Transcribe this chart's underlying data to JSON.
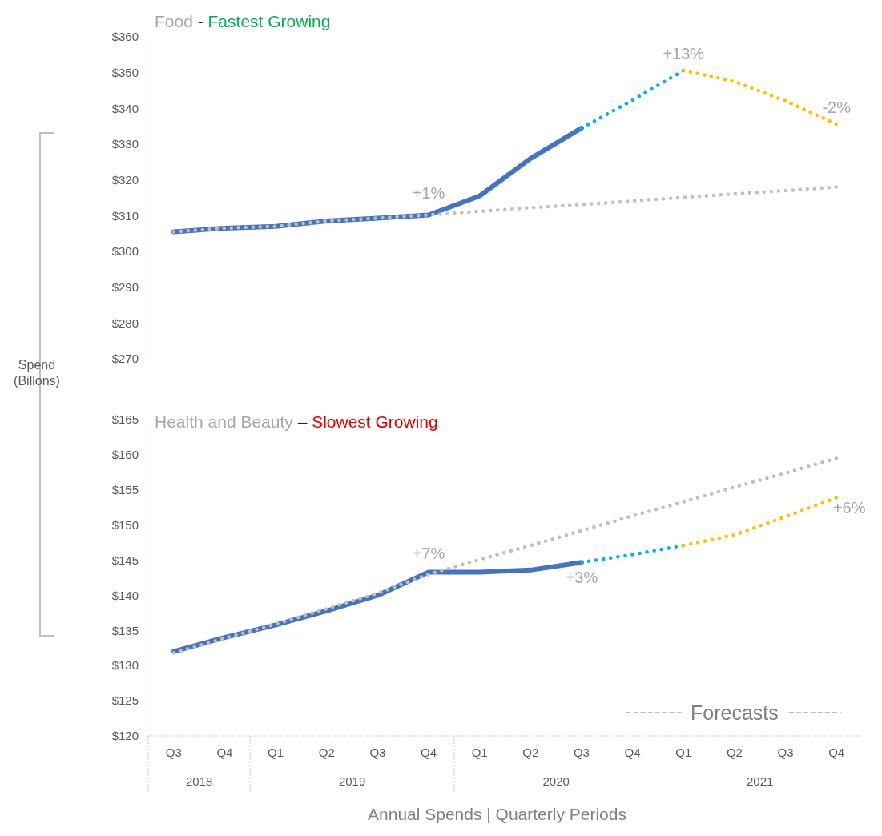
{
  "chart_data": [
    {
      "type": "line",
      "title": "Food - Fastest Growing",
      "ylabel": "Spend (Billons)",
      "categories": [
        null,
        null,
        null,
        null,
        null,
        null,
        null,
        null,
        null,
        null,
        null,
        null,
        null,
        null
      ],
      "series": [
        {
          "color": "#4472c4",
          "line_style": "solid",
          "values": [
            305.5,
            306.5,
            307,
            308.5,
            309.3,
            310.2,
            315.5,
            326,
            334.5,
            null,
            null,
            null,
            null,
            null
          ]
        },
        {
          "color": "#00b0f0",
          "line_style": "dotted",
          "values": [
            null,
            null,
            null,
            null,
            null,
            null,
            null,
            null,
            334.5,
            342.3,
            350.6,
            null,
            null,
            null
          ]
        },
        {
          "color": "#ffc000",
          "line_style": "dotted",
          "values": [
            null,
            null,
            null,
            null,
            null,
            null,
            null,
            null,
            null,
            null,
            350.6,
            347.5,
            342.1,
            335.6
          ]
        },
        {
          "color": "#bfbfbf",
          "line_style": "dotted",
          "values": [
            305.5,
            306.5,
            307,
            308.5,
            309.3,
            310.2,
            311.2,
            312.2,
            313.1,
            314.1,
            315.1,
            316.1,
            317,
            318
          ]
        }
      ],
      "ylim": [
        270,
        360
      ],
      "yticks": [
        {
          "value": 270,
          "label": "$270"
        },
        {
          "value": 280,
          "label": "$280"
        },
        {
          "value": 290,
          "label": "$290"
        },
        {
          "value": 300,
          "label": "$300"
        },
        {
          "value": 310,
          "label": "$310"
        },
        {
          "value": 320,
          "label": "$320"
        },
        {
          "value": 330,
          "label": "$330"
        },
        {
          "value": 340,
          "label": "$340"
        },
        {
          "value": 350,
          "label": "$350"
        },
        {
          "value": 360,
          "label": "$360"
        }
      ],
      "tick_labels": "y",
      "grid": false,
      "marker": "none",
      "annotations": [
        "+1%",
        "+13%",
        "-2%"
      ]
    },
    {
      "type": "line",
      "title": "Health and Beauty – Slowest Growing",
      "xlabel": "Annual Spends | Quarterly Periods",
      "categories": [
        "Q3",
        "Q4",
        "Q1",
        "Q2",
        "Q3",
        "Q4",
        "Q1",
        "Q2",
        "Q3",
        "Q4",
        "Q1",
        "Q2",
        "Q3",
        "Q4"
      ],
      "series": [
        {
          "color": "#4472c4",
          "line_style": "solid",
          "values": [
            132,
            134,
            135.8,
            137.8,
            140,
            143.3,
            143.3,
            143.6,
            144.7,
            null,
            null,
            null,
            null,
            null
          ]
        },
        {
          "color": "#00b0f0",
          "line_style": "dotted",
          "values": [
            null,
            null,
            null,
            null,
            null,
            null,
            null,
            null,
            144.7,
            145.8,
            147.1,
            null,
            null,
            null
          ]
        },
        {
          "color": "#ffc000",
          "line_style": "dotted",
          "values": [
            null,
            null,
            null,
            null,
            null,
            null,
            null,
            null,
            null,
            null,
            147.1,
            148.6,
            151.2,
            153.9
          ]
        },
        {
          "color": "#bfbfbf",
          "line_style": "dotted",
          "values": [
            131.8,
            133.9,
            135.9,
            138.1,
            140.3,
            143,
            145.1,
            147.1,
            149.2,
            151.3,
            153.3,
            155.4,
            157.4,
            159.5
          ]
        }
      ],
      "ylim": [
        120,
        165
      ],
      "yticks": [
        {
          "value": 120,
          "label": "$120"
        },
        {
          "value": 125,
          "label": "$125"
        },
        {
          "value": 130,
          "label": "$130"
        },
        {
          "value": 135,
          "label": "$135"
        },
        {
          "value": 140,
          "label": "$140"
        },
        {
          "value": 145,
          "label": "$145"
        },
        {
          "value": 150,
          "label": "$150"
        },
        {
          "value": 155,
          "label": "$155"
        },
        {
          "value": 160,
          "label": "$160"
        },
        {
          "value": 165,
          "label": "$165"
        }
      ],
      "grid": false,
      "marker": "none",
      "annotations": [
        "+7%",
        "+3%",
        "+6%",
        "Forecasts",
        "2018",
        "2019",
        "2020",
        "2021"
      ]
    }
  ]
}
